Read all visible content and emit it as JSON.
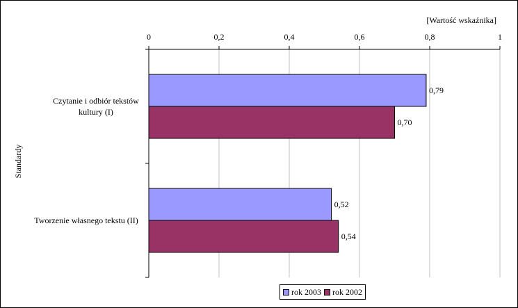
{
  "chart_data": {
    "type": "bar",
    "orientation": "horizontal",
    "title": "",
    "xlabel": "[Wartość wskaźnika]",
    "ylabel": "Standardy",
    "xlim": [
      0,
      1
    ],
    "xticks": [
      "0",
      "0,2",
      "0,4",
      "0,6",
      "0,8",
      "1"
    ],
    "categories": [
      [
        "Czytanie i odbiór tekstów",
        "kultury (I)"
      ],
      [
        "Tworzenie własnego tekstu (II)"
      ]
    ],
    "series": [
      {
        "name": "rok 2003",
        "values": [
          0.79,
          0.52
        ],
        "labels": [
          "0,79",
          "0,52"
        ],
        "color": "#9999ff"
      },
      {
        "name": "rok 2002",
        "values": [
          0.7,
          0.54
        ],
        "labels": [
          "0,70",
          "0,54"
        ],
        "color": "#993366"
      }
    ],
    "grid": true,
    "legend_position": "bottom"
  }
}
